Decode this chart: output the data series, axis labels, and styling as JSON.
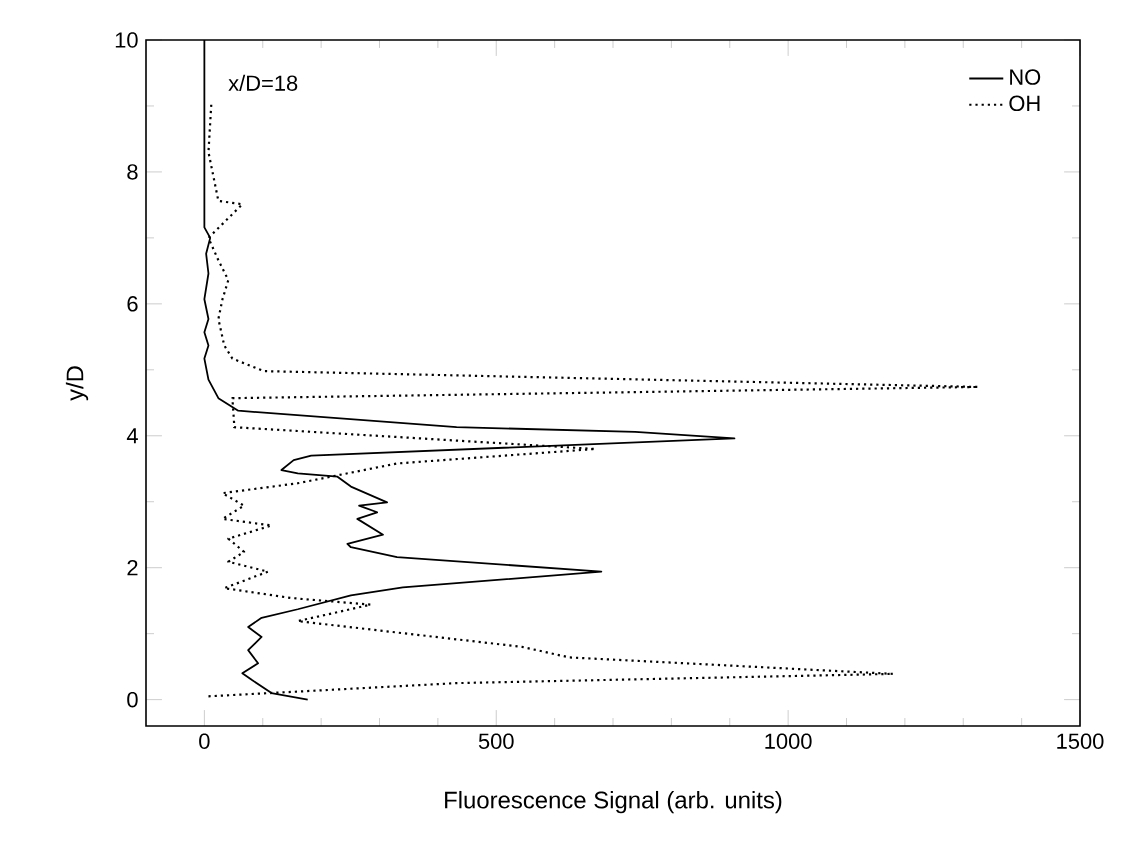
{
  "chart_data": {
    "type": "line",
    "xlabel": "Fluorescence Signal (arb. units)",
    "ylabel": "y/D",
    "annotations": [
      "x/D=18"
    ],
    "xlim": [
      -100,
      1500
    ],
    "ylim": [
      -0.4,
      10
    ],
    "xticks": [
      0,
      500,
      1000,
      1500
    ],
    "yticks": [
      0,
      2,
      4,
      6,
      8,
      10
    ],
    "legend": "top right",
    "marker": "none",
    "series": [
      {
        "name": "NO",
        "color": "#000000",
        "line_style": "solid",
        "x": [
          177,
          115,
          81,
          65,
          92,
          75,
          98,
          75,
          98,
          160,
          251,
          340,
          680,
          330,
          251,
          245,
          306,
          262,
          296,
          265,
          313,
          251,
          228,
          160,
          132,
          153,
          183,
          908,
          738,
          432,
          58,
          24,
          7,
          0,
          7,
          0,
          7,
          0,
          7,
          3,
          10,
          0,
          0
        ],
        "values": [
          0,
          0.1,
          0.3,
          0.4,
          0.55,
          0.75,
          0.95,
          1.1,
          1.24,
          1.37,
          1.58,
          1.7,
          1.94,
          2.16,
          2.31,
          2.36,
          2.5,
          2.74,
          2.84,
          2.94,
          2.99,
          3.23,
          3.38,
          3.43,
          3.48,
          3.63,
          3.7,
          3.96,
          4.06,
          4.13,
          4.38,
          4.57,
          4.85,
          5.17,
          5.37,
          5.57,
          5.77,
          6.07,
          6.46,
          6.76,
          7.0,
          7.16,
          10
        ]
      },
      {
        "name": "OH",
        "color": "#000000",
        "line_style": "dotted",
        "x": [
          7,
          432,
          1180,
          625,
          544,
          160,
          285,
          149,
          34,
          109,
          41,
          68,
          41,
          115,
          31,
          68,
          31,
          160,
          330,
          670,
          51,
          51,
          48,
          1326,
          102,
          48,
          34,
          24,
          31,
          41,
          24,
          7,
          65,
          24,
          7,
          12
        ],
        "values": [
          0.05,
          0.25,
          0.39,
          0.64,
          0.8,
          1.19,
          1.44,
          1.54,
          1.69,
          1.94,
          2.09,
          2.24,
          2.44,
          2.64,
          2.74,
          2.94,
          3.13,
          3.28,
          3.58,
          3.8,
          4.13,
          4.18,
          4.57,
          4.74,
          4.98,
          5.17,
          5.37,
          5.77,
          6.07,
          6.36,
          6.66,
          7.0,
          7.51,
          7.56,
          8.3,
          9.05
        ]
      }
    ]
  }
}
